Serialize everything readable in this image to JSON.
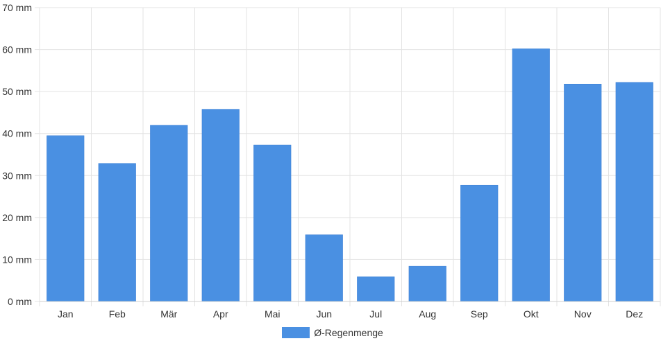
{
  "chart_data": {
    "type": "bar",
    "categories": [
      "Jan",
      "Feb",
      "Mär",
      "Apr",
      "Mai",
      "Jun",
      "Jul",
      "Aug",
      "Sep",
      "Okt",
      "Nov",
      "Dez"
    ],
    "series": [
      {
        "name": "Ø-Regenmenge",
        "values": [
          39.5,
          32.9,
          42.0,
          45.8,
          37.3,
          15.9,
          5.9,
          8.4,
          27.7,
          60.2,
          51.8,
          52.2
        ],
        "color": "#4a90e2"
      }
    ],
    "y_ticks": [
      "0 mm",
      "10 mm",
      "20 mm",
      "30 mm",
      "40 mm",
      "50 mm",
      "60 mm",
      "70 mm"
    ],
    "ylim": [
      0,
      70
    ],
    "y_step": 10,
    "grid": true,
    "legend_position": "bottom"
  }
}
